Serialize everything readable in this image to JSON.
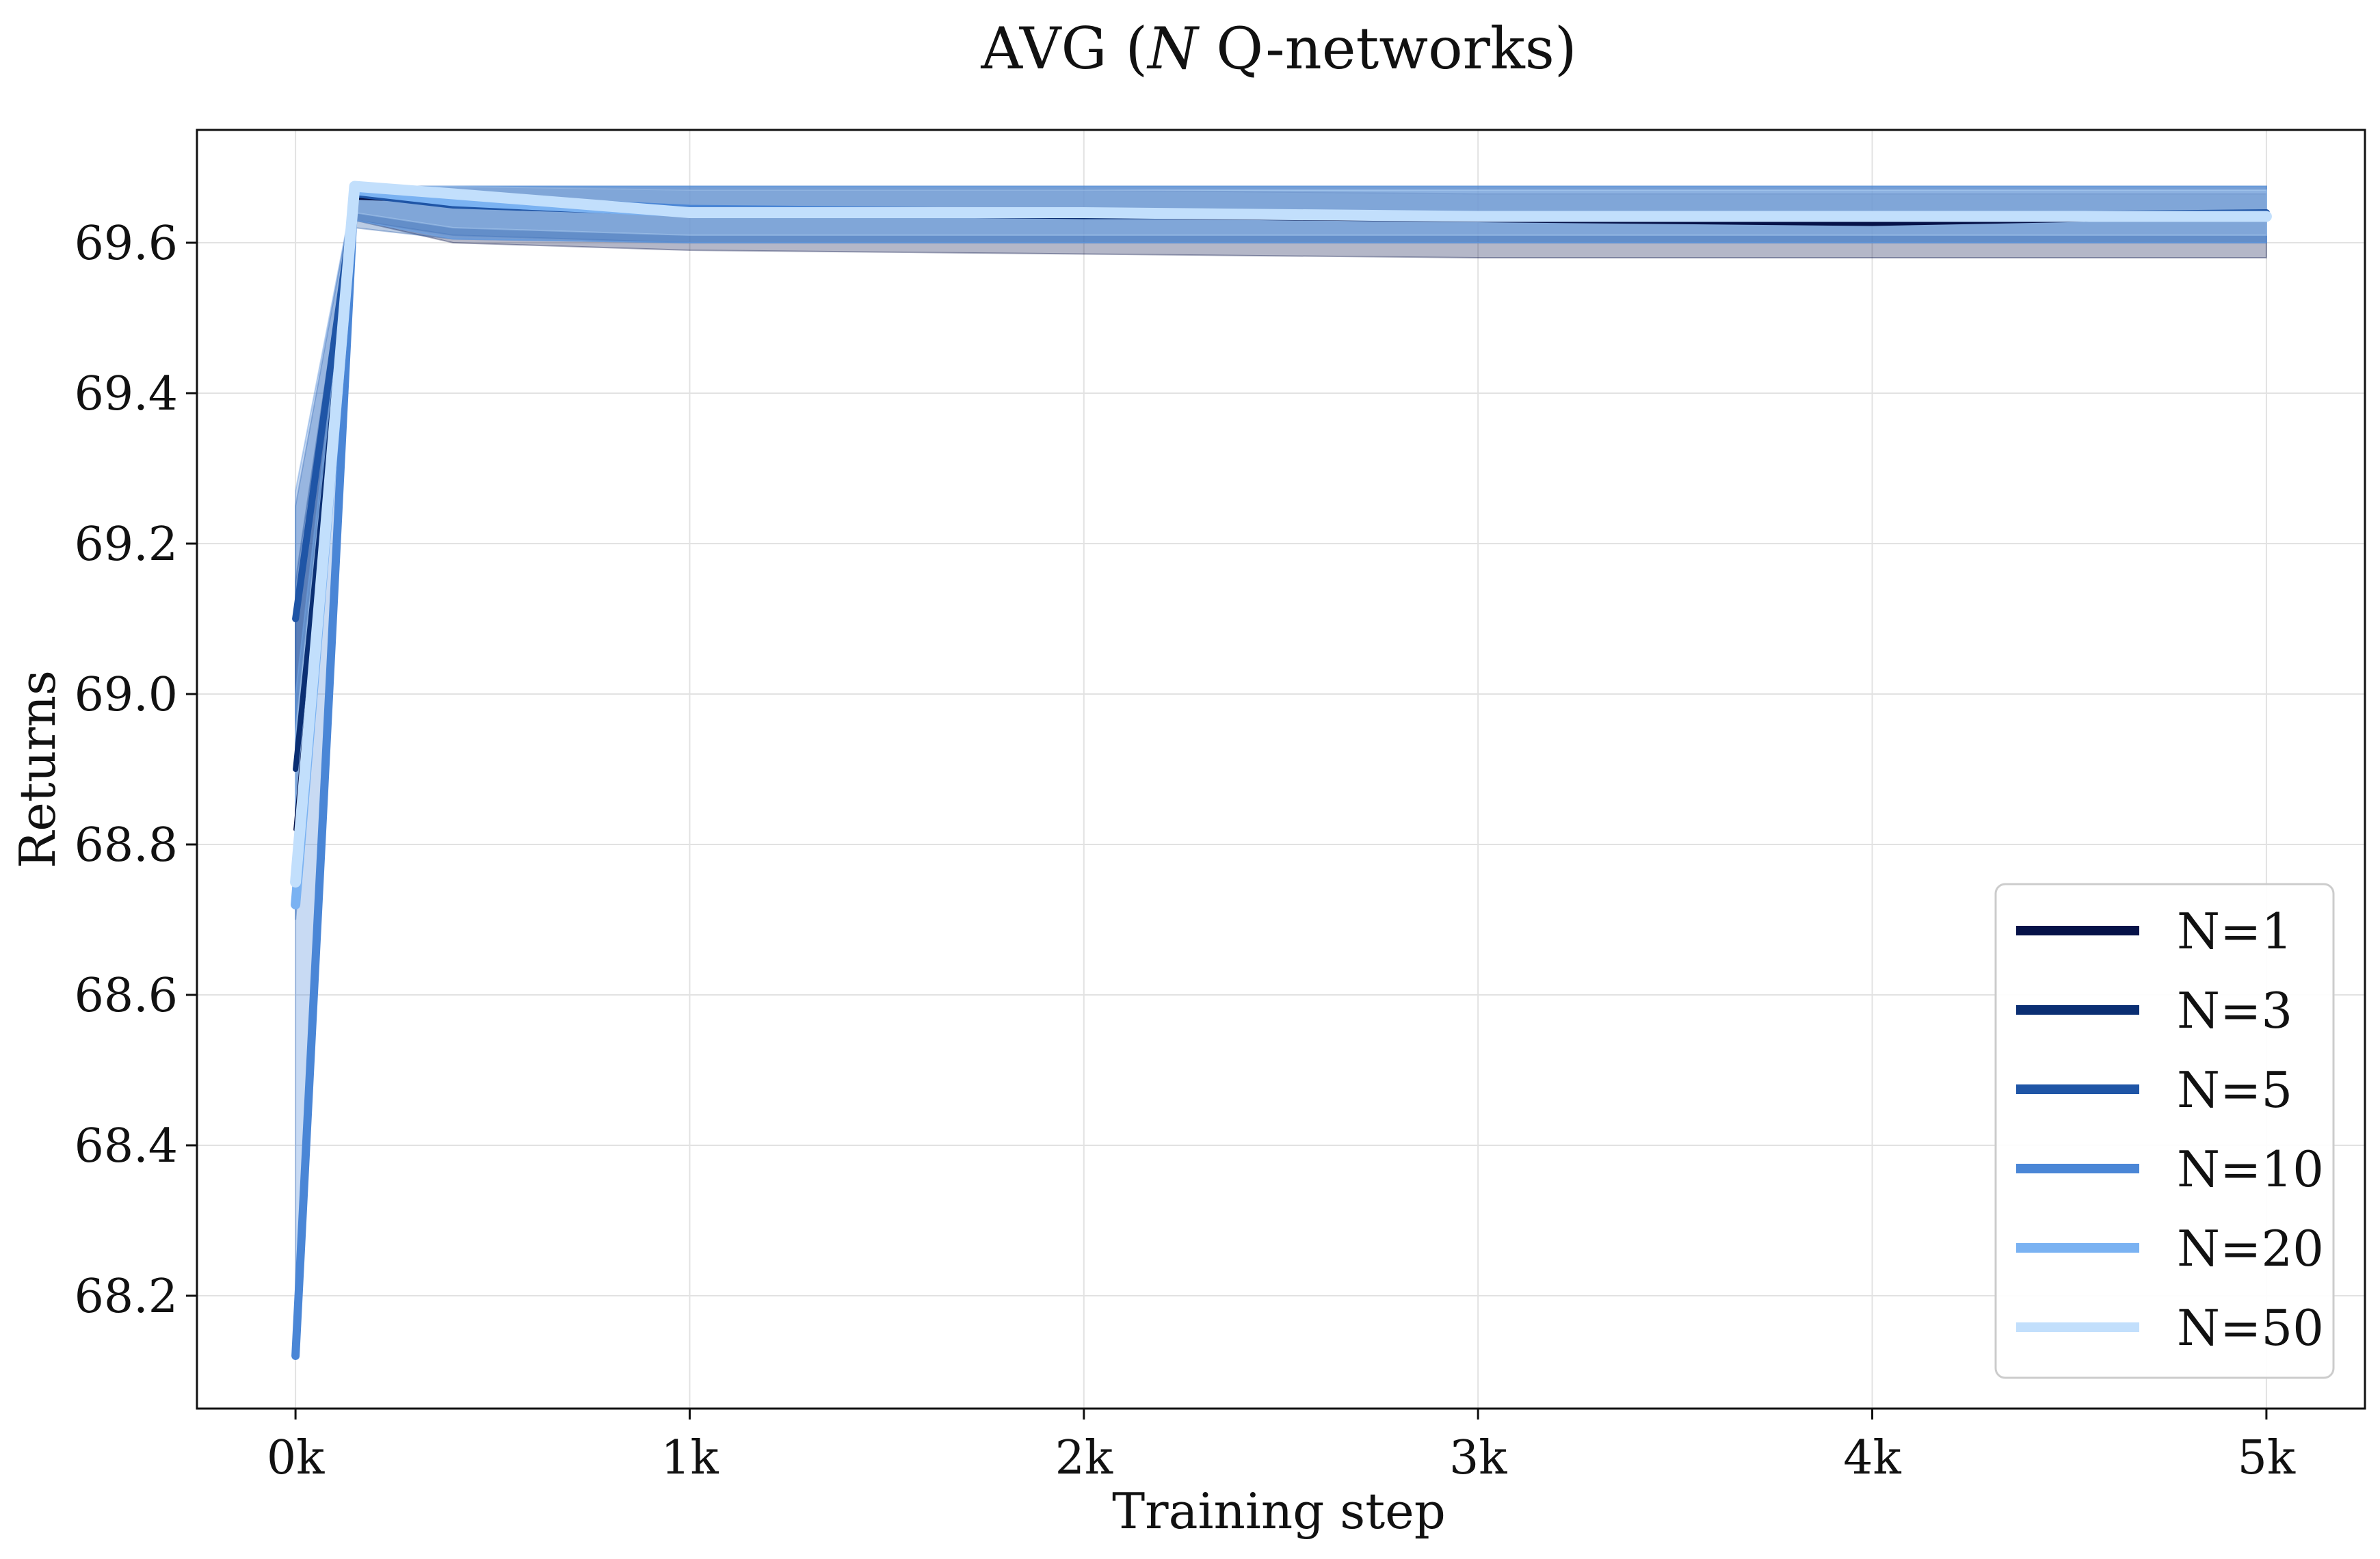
{
  "chart_data": {
    "type": "line",
    "title": "AVG (N Q-networks)",
    "title_parts": [
      "AVG (",
      "N",
      " Q-networks)"
    ],
    "xlabel": "Training step",
    "ylabel": "Returns",
    "xlim": [
      -250,
      5250
    ],
    "ylim": [
      68.05,
      69.75
    ],
    "x_ticks": [
      0,
      1000,
      2000,
      3000,
      4000,
      5000
    ],
    "x_tick_labels": [
      "0k",
      "1k",
      "2k",
      "3k",
      "4k",
      "5k"
    ],
    "y_ticks": [
      68.2,
      68.4,
      68.6,
      68.8,
      69.0,
      69.2,
      69.4,
      69.6
    ],
    "y_tick_labels": [
      "68.2",
      "68.4",
      "68.6",
      "68.8",
      "69.0",
      "69.2",
      "69.4",
      "69.6"
    ],
    "grid": true,
    "legend_position": "lower-right",
    "series": [
      {
        "name": "N=1",
        "color": "#061248",
        "x": [
          0,
          150,
          400,
          1000,
          2000,
          3000,
          4000,
          5000
        ],
        "y": [
          68.82,
          69.66,
          69.655,
          69.64,
          69.635,
          69.63,
          69.625,
          69.635
        ],
        "lower": [
          68.7,
          69.63,
          69.6,
          69.59,
          69.585,
          69.58,
          69.58,
          69.58
        ],
        "upper": [
          69.1,
          69.675,
          69.675,
          69.67,
          69.67,
          69.665,
          69.665,
          69.665
        ]
      },
      {
        "name": "N=3",
        "color": "#0b2f73",
        "x": [
          0,
          150,
          400,
          1000,
          2000,
          3000,
          4000,
          5000
        ],
        "y": [
          68.9,
          69.665,
          69.65,
          69.64,
          69.635,
          69.635,
          69.635,
          69.64
        ],
        "lower": [
          68.75,
          69.63,
          69.61,
          69.6,
          69.6,
          69.6,
          69.6,
          69.6
        ],
        "upper": [
          69.15,
          69.675,
          69.675,
          69.675,
          69.675,
          69.675,
          69.675,
          69.675
        ]
      },
      {
        "name": "N=5",
        "color": "#1f55a6",
        "x": [
          0,
          150,
          400,
          1000,
          2000,
          3000,
          4000,
          5000
        ],
        "y": [
          69.1,
          69.665,
          69.65,
          69.64,
          69.64,
          69.635,
          69.635,
          69.64
        ],
        "lower": [
          68.8,
          69.62,
          69.605,
          69.6,
          69.6,
          69.6,
          69.6,
          69.6
        ],
        "upper": [
          69.25,
          69.675,
          69.675,
          69.675,
          69.675,
          69.675,
          69.675,
          69.675
        ]
      },
      {
        "name": "N=10",
        "color": "#4a86d6",
        "x": [
          0,
          150,
          400,
          1000,
          2000,
          3000,
          4000,
          5000
        ],
        "y": [
          68.12,
          69.67,
          69.66,
          69.645,
          69.64,
          69.635,
          69.635,
          69.635
        ],
        "lower": [
          68.12,
          69.63,
          69.605,
          69.6,
          69.6,
          69.6,
          69.6,
          69.6
        ],
        "upper": [
          69.27,
          69.675,
          69.675,
          69.675,
          69.675,
          69.675,
          69.675,
          69.675
        ]
      },
      {
        "name": "N=20",
        "color": "#7ab2f2",
        "x": [
          0,
          150,
          400,
          1000,
          2000,
          3000,
          4000,
          5000
        ],
        "y": [
          68.72,
          69.67,
          69.655,
          69.64,
          69.64,
          69.635,
          69.635,
          69.635
        ],
        "lower": [
          68.7,
          69.63,
          69.605,
          69.6,
          69.6,
          69.6,
          69.6,
          69.6
        ],
        "upper": [
          69.0,
          69.675,
          69.675,
          69.675,
          69.675,
          69.675,
          69.675,
          69.675
        ]
      },
      {
        "name": "N=50",
        "color": "#c2dffc",
        "x": [
          0,
          150,
          400,
          1000,
          2000,
          3000,
          4000,
          5000
        ],
        "y": [
          68.75,
          69.675,
          69.665,
          69.64,
          69.64,
          69.635,
          69.635,
          69.635
        ],
        "lower": [
          68.74,
          69.64,
          69.62,
          69.61,
          69.61,
          69.61,
          69.61,
          69.61
        ],
        "upper": [
          68.95,
          69.675,
          69.675,
          69.67,
          69.67,
          69.67,
          69.67,
          69.67
        ]
      }
    ]
  }
}
